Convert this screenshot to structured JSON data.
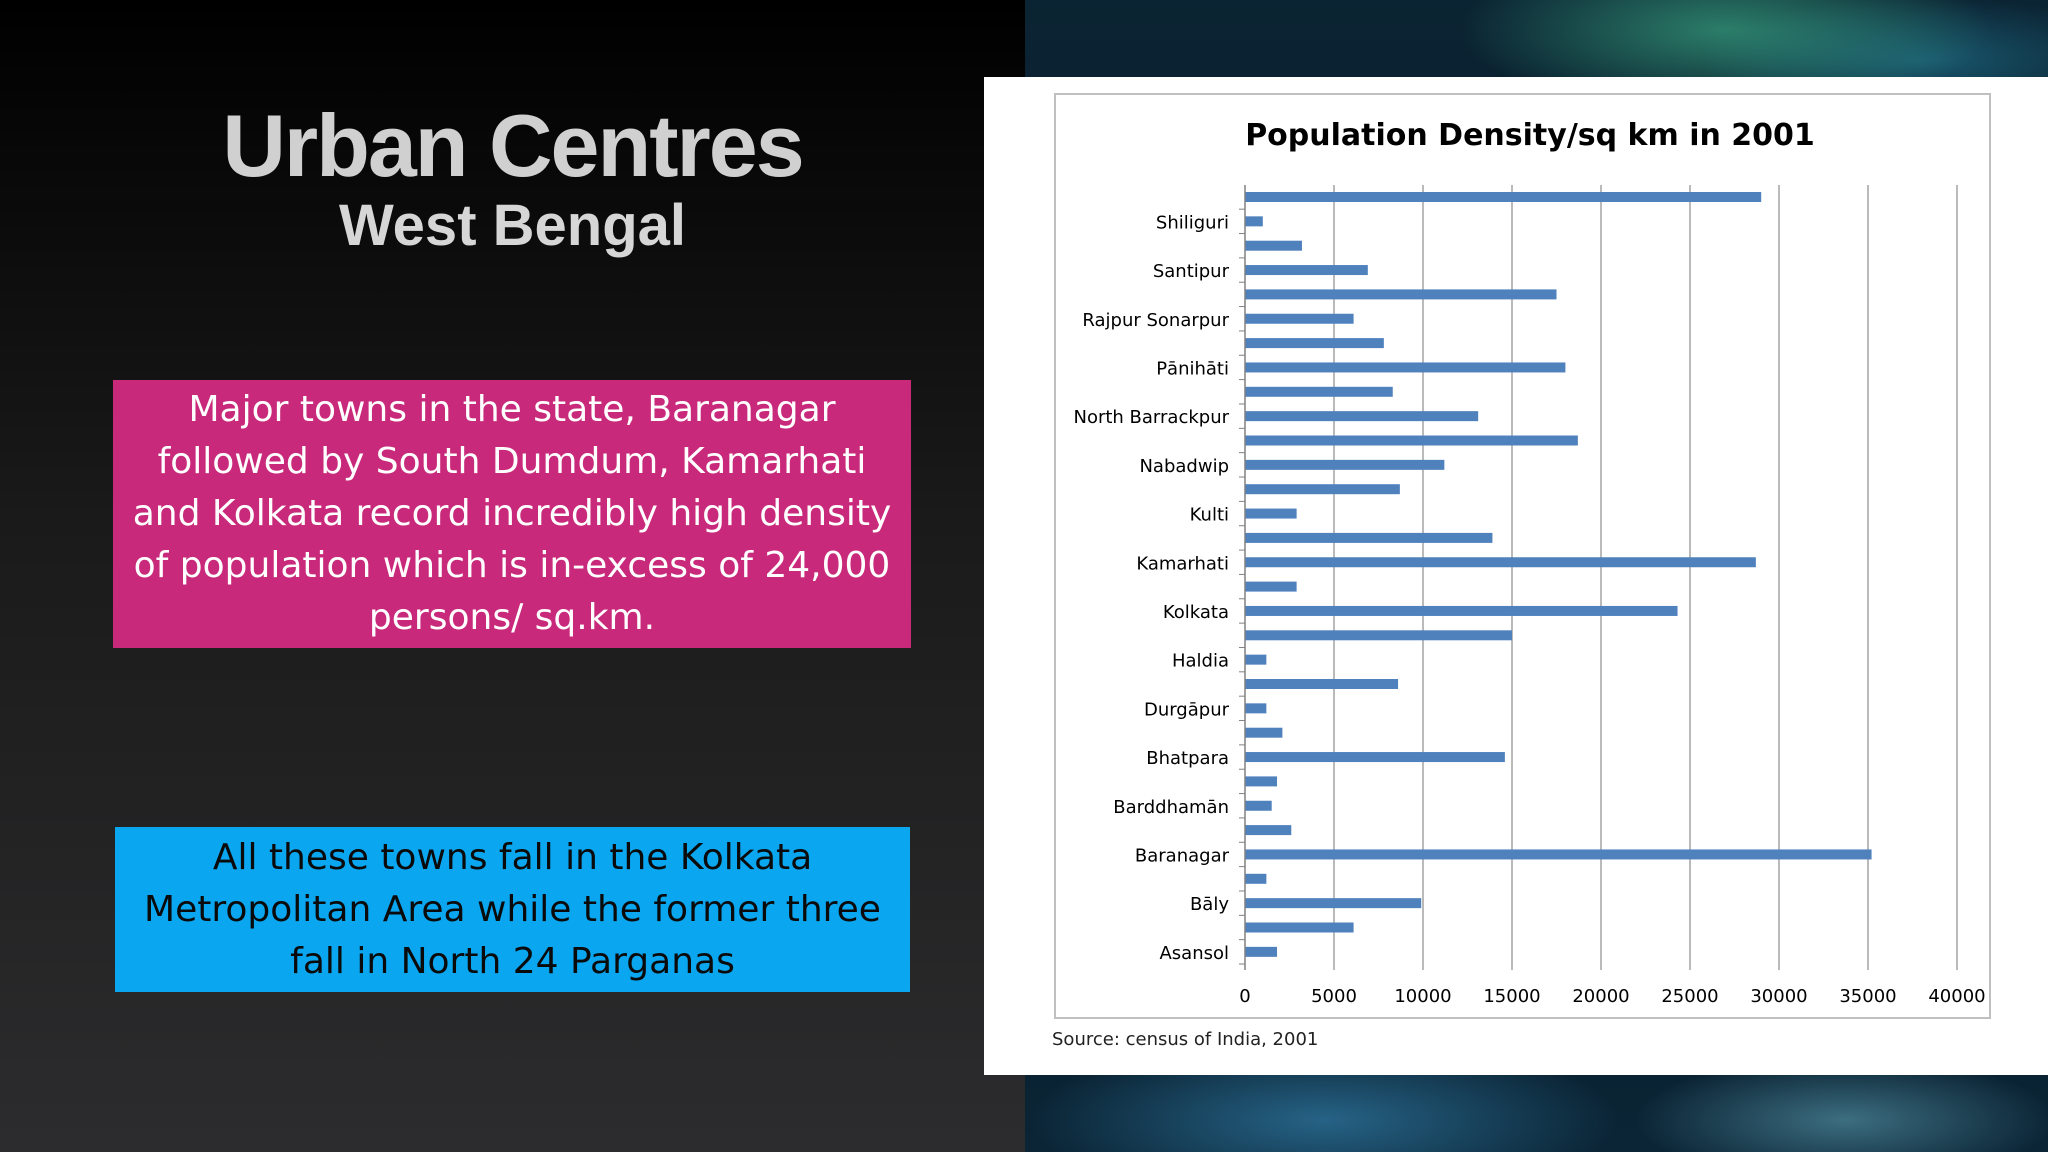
{
  "slide": {
    "title": "Urban Centres",
    "subtitle": "West Bengal",
    "box1": "Major towns in the state, Baranagar followed by South Dumdum, Kamarhati and Kolkata record incredibly high density of population which is in-excess of 24,000 persons/ sq.km.",
    "box2": "All these towns fall in the Kolkata Metropolitan Area while the former three fall in North 24 Parganas"
  },
  "colors": {
    "bar": "#4f81bd",
    "pink_box": "#c9297a",
    "blue_box": "#0aa6f0"
  },
  "chart_data": {
    "type": "bar",
    "orientation": "horizontal",
    "title": "Population Density/sq km in 2001",
    "source": "Source: census of India, 2001",
    "xlim": [
      0,
      40000
    ],
    "x_ticks": [
      0,
      5000,
      10000,
      15000,
      20000,
      25000,
      30000,
      35000,
      40000
    ],
    "grid": "vertical",
    "legend": "none",
    "rows_top_to_bottom": [
      {
        "label": "",
        "value": 29000
      },
      {
        "label": "Shiliguri",
        "value": 1000
      },
      {
        "label": "",
        "value": 3200
      },
      {
        "label": "Santipur",
        "value": 6900
      },
      {
        "label": "",
        "value": 17500
      },
      {
        "label": "Rajpur Sonarpur",
        "value": 6100
      },
      {
        "label": "",
        "value": 7800
      },
      {
        "label": "Pānihāti",
        "value": 18000
      },
      {
        "label": "",
        "value": 8300
      },
      {
        "label": "North Barrackpur",
        "value": 13100
      },
      {
        "label": "",
        "value": 18700
      },
      {
        "label": "Nabadwip",
        "value": 11200
      },
      {
        "label": "",
        "value": 8700
      },
      {
        "label": "Kulti",
        "value": 2900
      },
      {
        "label": "",
        "value": 13900
      },
      {
        "label": "Kamarhati",
        "value": 28700
      },
      {
        "label": "",
        "value": 2900
      },
      {
        "label": "Kolkata",
        "value": 24300
      },
      {
        "label": "",
        "value": 15000
      },
      {
        "label": "Haldia",
        "value": 1200
      },
      {
        "label": "",
        "value": 8600
      },
      {
        "label": "Durgāpur",
        "value": 1200
      },
      {
        "label": "",
        "value": 2100
      },
      {
        "label": "Bhatpara",
        "value": 14600
      },
      {
        "label": "",
        "value": 1800
      },
      {
        "label": "Barddhamān",
        "value": 1500
      },
      {
        "label": "",
        "value": 2600
      },
      {
        "label": "Baranagar",
        "value": 35200
      },
      {
        "label": "",
        "value": 1200
      },
      {
        "label": "Bāly",
        "value": 9900
      },
      {
        "label": "",
        "value": 6100
      },
      {
        "label": "Asansol",
        "value": 1800
      }
    ]
  }
}
